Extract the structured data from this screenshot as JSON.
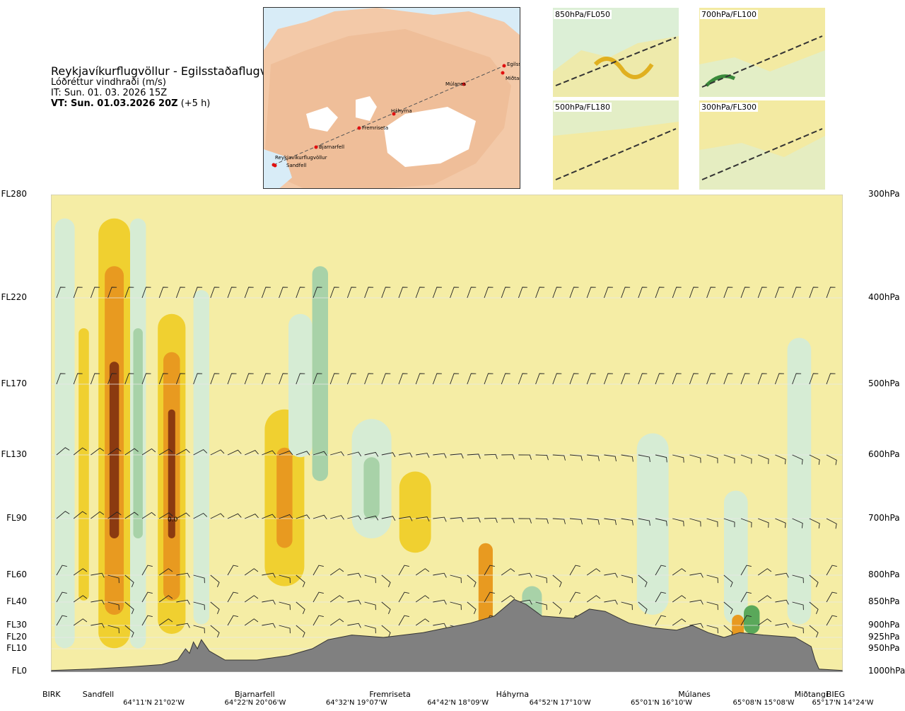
{
  "chart_data": {
    "type": "heatmap",
    "title": "Reykjavíkurflugvöllur - Egilsstaðaflugvöllur",
    "subtitle": "Lóðréttur vindhraði (m/s)",
    "issue_time": "IT: Sun. 01. 03. 2026 15Z",
    "valid_time_label": "VT: Sun. 01.03.2026 20Z",
    "valid_time_offset": "(+5 h)",
    "flight_levels": [
      {
        "label": "FL280",
        "pressure": 300
      },
      {
        "label": "FL220",
        "pressure": 400
      },
      {
        "label": "FL170",
        "pressure": 500
      },
      {
        "label": "FL130",
        "pressure": 600
      },
      {
        "label": "FL90",
        "pressure": 700
      },
      {
        "label": "FL60",
        "pressure": 800
      },
      {
        "label": "FL40",
        "pressure": 850
      },
      {
        "label": "FL30",
        "pressure": 900
      },
      {
        "label": "FL20",
        "pressure": 925
      },
      {
        "label": "FL10",
        "pressure": 950
      },
      {
        "label": "FL0",
        "pressure": 1000
      }
    ],
    "pressure_labels": [
      "300hPa",
      "400hPa",
      "500hPa",
      "600hPa",
      "700hPa",
      "800hPa",
      "850hPa",
      "900hPa",
      "925hPa",
      "950hPa",
      "1000hPa"
    ],
    "stations": [
      {
        "name": "BIRK",
        "pos": 0.0
      },
      {
        "name": "Sandfell",
        "pos": 0.04
      },
      {
        "name": "Bjarnarfell",
        "pos": 0.25
      },
      {
        "name": "Fremriseta",
        "pos": 0.42
      },
      {
        "name": "Háhyrna",
        "pos": 0.58
      },
      {
        "name": "Múlanes",
        "pos": 0.81
      },
      {
        "name": "Miðtangi",
        "pos": 0.955
      },
      {
        "name": "BIEG",
        "pos": 0.99
      }
    ],
    "coords": [
      {
        "label": "64°11'N 21°02'W",
        "pos": 0.13
      },
      {
        "label": "64°22'N 20°06'W",
        "pos": 0.258
      },
      {
        "label": "64°32'N 19°07'W",
        "pos": 0.386
      },
      {
        "label": "64°42'N 18°09'W",
        "pos": 0.514
      },
      {
        "label": "64°52'N 17°10'W",
        "pos": 0.643
      },
      {
        "label": "65°01'N 16°10'W",
        "pos": 0.771
      },
      {
        "label": "65°08'N 15°08'W",
        "pos": 0.9
      },
      {
        "label": "65°17'N 14°24'W",
        "pos": 1.0
      }
    ],
    "contour_label": "0.0",
    "colors": {
      "terrain": "#808080",
      "background": "#f5eda5",
      "up_strong": "#8b3a10",
      "up_medium": "#e89a20",
      "up_weak": "#f0d030",
      "down_weak": "#d6ecd4",
      "down_medium": "#a8d2a8",
      "down_strong": "#5aa85a"
    }
  },
  "map": {
    "places": [
      "Egilsstaðir",
      "Miðtangi",
      "Múlanes",
      "Háhyrna",
      "Fremriseta",
      "Bjarnarfell",
      "Reykjavíkurflugvöllur",
      "Sandfell"
    ]
  },
  "mini_maps": [
    {
      "label": "850hPa/FL050"
    },
    {
      "label": "700hPa/FL100"
    },
    {
      "label": "500hPa/FL180"
    },
    {
      "label": "300hPa/FL300"
    }
  ]
}
